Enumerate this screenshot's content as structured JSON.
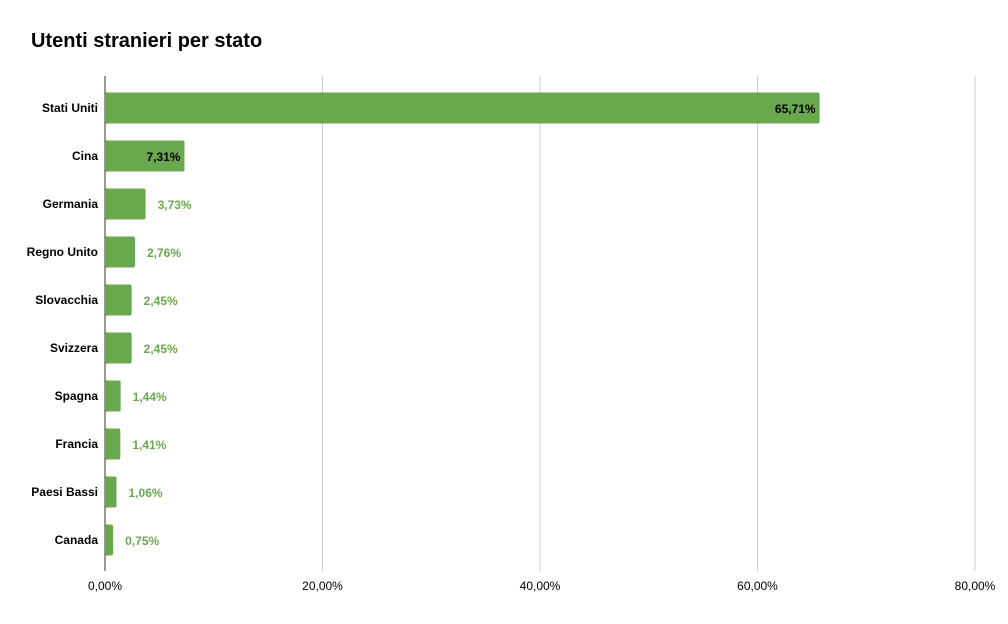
{
  "chart_data": {
    "type": "bar",
    "orientation": "horizontal",
    "title": "Utenti stranieri per stato",
    "categories": [
      "Stati Uniti",
      "Cina",
      "Germania",
      "Regno Unito",
      "Slovacchia",
      "Svizzera",
      "Spagna",
      "Francia",
      "Paesi Bassi",
      "Canada"
    ],
    "values": [
      65.71,
      7.31,
      3.73,
      2.76,
      2.45,
      2.45,
      1.44,
      1.41,
      1.06,
      0.75
    ],
    "value_labels": [
      "65,71%",
      "7,31%",
      "3,73%",
      "2,76%",
      "2,45%",
      "2,45%",
      "1,44%",
      "1,41%",
      "1,06%",
      "0,75%"
    ],
    "xlim": [
      0,
      80
    ],
    "x_ticks": [
      0,
      20,
      40,
      60,
      80
    ],
    "x_tick_labels": [
      "0,00%",
      "20,00%",
      "40,00%",
      "60,00%",
      "80,00%"
    ],
    "grid": true,
    "legend": "none",
    "colors": {
      "bar": "#6aa84f",
      "label_inside": "#000000",
      "label_outside": "#6aa84f",
      "grid": "#cccccc",
      "axis": "#333333"
    }
  }
}
